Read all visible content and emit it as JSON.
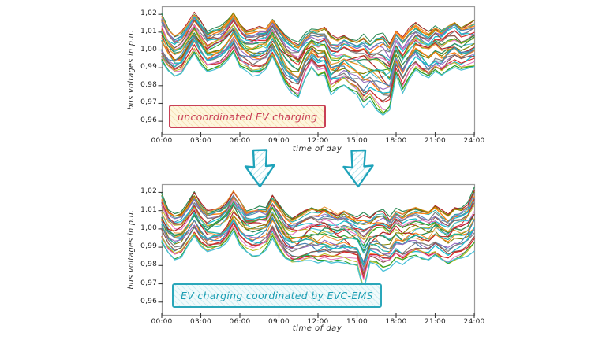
{
  "figure": {
    "background": "#ffffff",
    "frame_color": "#9b9b9b",
    "tick_color": "#3a3a3a",
    "text_color": "#1f1f1f"
  },
  "arrows": {
    "count": 2,
    "stroke": "#1fa3ba",
    "hatch": "#a7dfe9",
    "fill": "#ffffff"
  },
  "chart_data": [
    {
      "type": "line",
      "annotation": {
        "text": "uncoordinated EV charging",
        "text_color": "#c94056",
        "border_color": "#c94056",
        "bg_color": "#fdf6dd",
        "hatch_color": "#efc075"
      },
      "xlabel": "time of day",
      "ylabel": "bus voltages in p.u.",
      "x_ticks": [
        "00:00",
        "03:00",
        "06:00",
        "09:00",
        "12:00",
        "15:00",
        "18:00",
        "21:00",
        "24:00"
      ],
      "x_tick_hours": [
        0,
        3,
        6,
        9,
        12,
        15,
        18,
        21,
        24
      ],
      "y_ticks": [
        "1,02",
        "1,01",
        "1,00",
        "0,99",
        "0,98",
        "0,97",
        "0,96"
      ],
      "y_tick_values": [
        1.02,
        1.01,
        1.0,
        0.99,
        0.98,
        0.97,
        0.96
      ],
      "ylim": [
        0.953,
        1.0245
      ],
      "xlim_hours": [
        0,
        24
      ],
      "x_step_hours": 0.5,
      "x_hours": [
        0,
        0.5,
        1,
        1.5,
        2,
        2.5,
        3,
        3.5,
        4,
        4.5,
        5,
        5.5,
        6,
        6.5,
        7,
        7.5,
        8,
        8.5,
        9,
        9.5,
        10,
        10.5,
        11,
        11.5,
        12,
        12.5,
        13,
        13.5,
        14,
        14.5,
        15,
        15.5,
        16,
        16.5,
        17,
        17.5,
        18,
        18.5,
        19,
        19.5,
        20,
        20.5,
        21,
        21.5,
        22,
        22.5,
        23,
        23.5,
        24
      ],
      "envelope_upper": [
        1.02,
        1.012,
        1.008,
        1.01,
        1.015,
        1.021,
        1.016,
        1.01,
        1.012,
        1.013,
        1.016,
        1.021,
        1.015,
        1.011,
        1.012,
        1.013,
        1.012,
        1.017,
        1.012,
        1.008,
        1.006,
        1.005,
        1.01,
        1.012,
        1.012,
        1.013,
        1.008,
        1.006,
        1.008,
        1.006,
        1.005,
        1.008,
        1.004,
        1.008,
        1.01,
        1.005,
        1.012,
        1.008,
        1.012,
        1.015,
        1.012,
        1.01,
        1.013,
        1.011,
        1.014,
        1.016,
        1.013,
        1.015,
        1.017
      ],
      "envelope_lower": [
        0.993,
        0.988,
        0.985,
        0.986,
        0.992,
        0.998,
        0.992,
        0.988,
        0.989,
        0.99,
        0.993,
        0.998,
        0.99,
        0.988,
        0.985,
        0.985,
        0.988,
        0.995,
        0.988,
        0.98,
        0.975,
        0.972,
        0.983,
        0.99,
        0.985,
        0.986,
        0.975,
        0.978,
        0.98,
        0.977,
        0.975,
        0.968,
        0.972,
        0.966,
        0.962,
        0.965,
        0.985,
        0.975,
        0.983,
        0.988,
        0.985,
        0.983,
        0.987,
        0.985,
        0.988,
        0.99,
        0.988,
        0.989,
        0.99
      ],
      "n_series": 32,
      "palette": [
        "#2e8b57",
        "#b22222",
        "#e8952e",
        "#808000",
        "#20b2aa",
        "#ff7f0e",
        "#4682b4",
        "#9467bd",
        "#7f7f7f",
        "#17becf",
        "#8c564b",
        "#d62728",
        "#e377c2",
        "#bcbd22",
        "#2ca02c",
        "#49c0d8"
      ],
      "seed": 7
    },
    {
      "type": "line",
      "annotation": {
        "text": "EV charging coordinated by EVC-EMS",
        "text_color": "#1b9eb3",
        "border_color": "#2aa7ba",
        "bg_color": "#f1fafb",
        "hatch_color": "#8fd4e0"
      },
      "xlabel": "time of day",
      "ylabel": "bus voltages in p.u.",
      "x_ticks": [
        "00:00",
        "03:00",
        "06:00",
        "09:00",
        "12:00",
        "15:00",
        "18:00",
        "21:00",
        "24:00"
      ],
      "x_tick_hours": [
        0,
        3,
        6,
        9,
        12,
        15,
        18,
        21,
        24
      ],
      "y_ticks": [
        "1,02",
        "1,01",
        "1,00",
        "0,99",
        "0,98",
        "0,97",
        "0,96"
      ],
      "y_tick_values": [
        1.02,
        1.01,
        1.0,
        0.99,
        0.98,
        0.97,
        0.96
      ],
      "ylim": [
        0.953,
        1.0245
      ],
      "xlim_hours": [
        0,
        24
      ],
      "x_step_hours": 0.5,
      "x_hours": [
        0,
        0.5,
        1,
        1.5,
        2,
        2.5,
        3,
        3.5,
        4,
        4.5,
        5,
        5.5,
        6,
        6.5,
        7,
        7.5,
        8,
        8.5,
        9,
        9.5,
        10,
        10.5,
        11,
        11.5,
        12,
        12.5,
        13,
        13.5,
        14,
        14.5,
        15,
        15.5,
        16,
        16.5,
        17,
        17.5,
        18,
        18.5,
        19,
        19.5,
        20,
        20.5,
        21,
        21.5,
        22,
        22.5,
        23,
        23.5,
        24
      ],
      "envelope_upper": [
        1.019,
        1.01,
        1.008,
        1.009,
        1.014,
        1.02,
        1.014,
        1.01,
        1.011,
        1.012,
        1.015,
        1.021,
        1.016,
        1.01,
        1.011,
        1.012,
        1.011,
        1.018,
        1.013,
        1.008,
        1.006,
        1.008,
        1.01,
        1.012,
        1.011,
        1.012,
        1.01,
        1.008,
        1.01,
        1.008,
        1.006,
        1.008,
        1.006,
        1.009,
        1.01,
        1.006,
        1.011,
        1.009,
        1.011,
        1.012,
        1.011,
        1.01,
        1.013,
        1.01,
        1.008,
        1.012,
        1.012,
        1.014,
        1.022
      ],
      "envelope_lower": [
        0.992,
        0.986,
        0.983,
        0.985,
        0.991,
        0.996,
        0.99,
        0.987,
        0.988,
        0.989,
        0.992,
        0.998,
        0.99,
        0.987,
        0.985,
        0.986,
        0.989,
        0.995,
        0.988,
        0.983,
        0.981,
        0.981,
        0.982,
        0.982,
        0.981,
        0.982,
        0.981,
        0.982,
        0.982,
        0.981,
        0.98,
        0.964,
        0.98,
        0.979,
        0.976,
        0.978,
        0.982,
        0.98,
        0.983,
        0.985,
        0.984,
        0.983,
        0.985,
        0.982,
        0.98,
        0.982,
        0.983,
        0.985,
        0.988
      ],
      "n_series": 32,
      "palette": [
        "#2e8b57",
        "#b22222",
        "#e8952e",
        "#808000",
        "#20b2aa",
        "#ff7f0e",
        "#4682b4",
        "#9467bd",
        "#7f7f7f",
        "#17becf",
        "#8c564b",
        "#d62728",
        "#e377c2",
        "#bcbd22",
        "#2ca02c",
        "#49c0d8"
      ],
      "seed": 13
    }
  ]
}
